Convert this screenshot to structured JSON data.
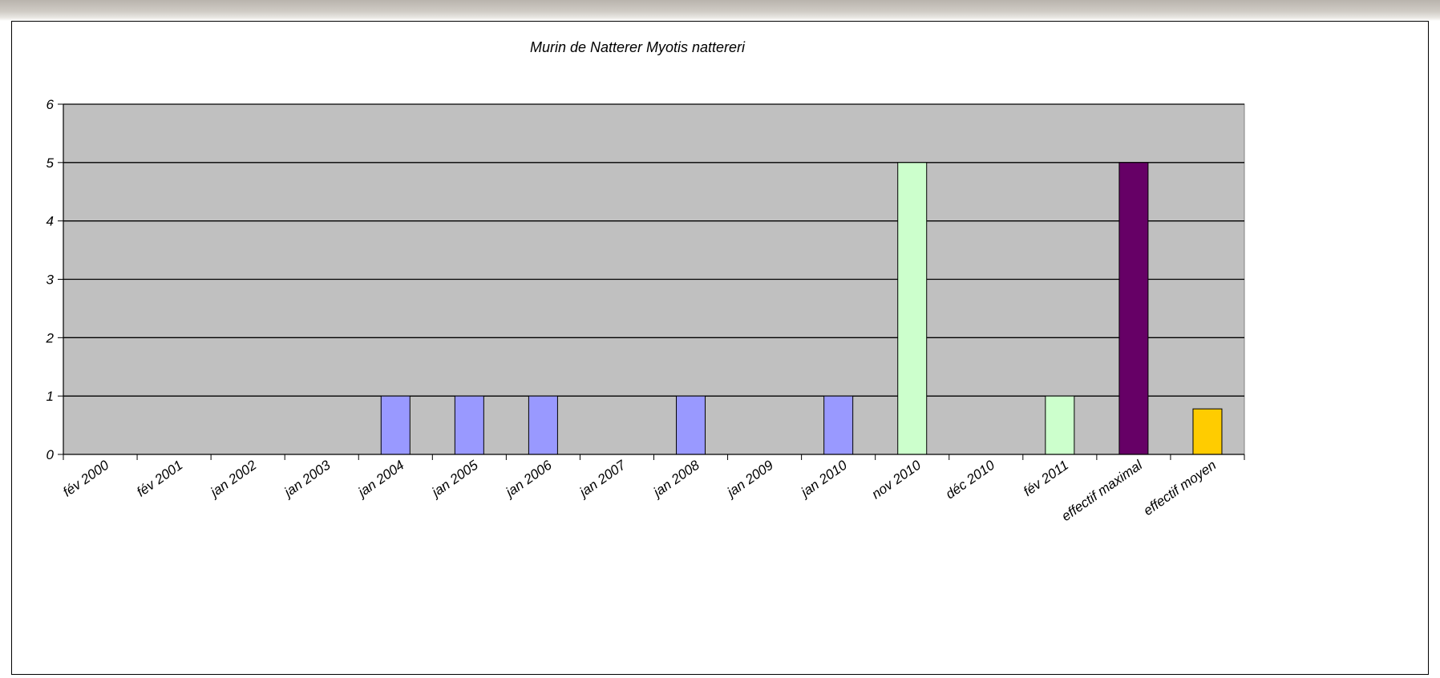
{
  "chart_data": {
    "type": "bar",
    "title": "Murin de Natterer Myotis nattereri",
    "xlabel": "",
    "ylabel": "",
    "ylim": [
      0,
      6
    ],
    "yticks": [
      0,
      1,
      2,
      3,
      4,
      5,
      6
    ],
    "grid": true,
    "legend": "none",
    "plot_background": "#c0c0c0",
    "categories": [
      "fév 2000",
      "fév 2001",
      "jan 2002",
      "jan 2003",
      "jan 2004",
      "jan 2005",
      "jan 2006",
      "jan 2007",
      "jan 2008",
      "jan 2009",
      "jan 2010",
      "nov 2010",
      "déc 2010",
      "fév 2011",
      "effectif maximal",
      "effectif moyen"
    ],
    "values": [
      0,
      0,
      0,
      0,
      1,
      1,
      1,
      0,
      1,
      0,
      1,
      5,
      0,
      1,
      5,
      0.78
    ],
    "bar_colors": [
      "#9999ff",
      "#9999ff",
      "#9999ff",
      "#9999ff",
      "#9999ff",
      "#9999ff",
      "#9999ff",
      "#9999ff",
      "#9999ff",
      "#9999ff",
      "#9999ff",
      "#ccffcc",
      "#ccffcc",
      "#ccffcc",
      "#660066",
      "#ffcc00"
    ]
  }
}
